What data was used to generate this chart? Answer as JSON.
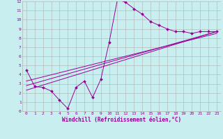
{
  "xlabel": "Windchill (Refroidissement éolien,°C)",
  "bg_color": "#c8eef0",
  "line_color": "#990099",
  "grid_color": "#b0b0b0",
  "xlim": [
    -0.5,
    23.5
  ],
  "ylim": [
    0,
    12
  ],
  "xticks": [
    0,
    1,
    2,
    3,
    4,
    5,
    6,
    7,
    8,
    9,
    10,
    11,
    12,
    13,
    14,
    15,
    16,
    17,
    18,
    19,
    20,
    21,
    22,
    23
  ],
  "yticks": [
    0,
    1,
    2,
    3,
    4,
    5,
    6,
    7,
    8,
    9,
    10,
    11,
    12
  ],
  "line1_x": [
    0,
    1,
    2,
    3,
    4,
    5,
    6,
    7,
    8,
    9,
    10,
    11,
    12,
    13,
    14,
    15,
    16,
    17,
    18,
    19,
    20,
    21,
    22,
    23
  ],
  "line1_y": [
    4.5,
    2.7,
    2.6,
    2.2,
    1.2,
    0.3,
    2.6,
    3.3,
    1.5,
    3.5,
    7.5,
    12.2,
    11.9,
    11.2,
    10.6,
    9.8,
    9.4,
    9.0,
    8.7,
    8.7,
    8.5,
    8.7,
    8.7,
    8.7
  ],
  "line2_x": [
    0,
    23
  ],
  "line2_y": [
    2.3,
    8.7
  ],
  "line3_x": [
    0,
    23
  ],
  "line3_y": [
    2.8,
    8.7
  ],
  "line4_x": [
    0,
    23
  ],
  "line4_y": [
    3.3,
    8.5
  ],
  "tick_fontsize": 4.5,
  "xlabel_fontsize": 5.5
}
